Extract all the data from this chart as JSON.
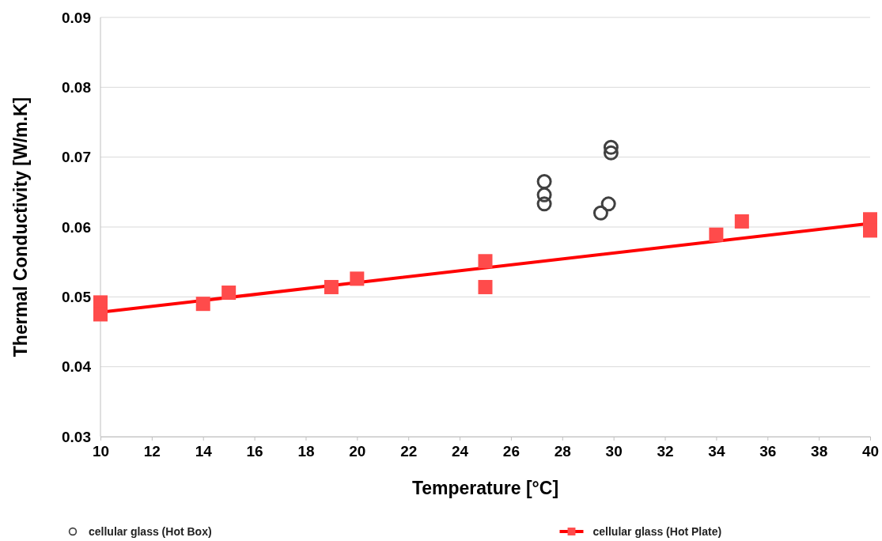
{
  "chart_data": {
    "type": "scatter",
    "xlabel": "Temperature [°C]",
    "ylabel": "Thermal Conductivity [W/m.K]",
    "xlim": [
      10,
      40
    ],
    "xticks": [
      10,
      12,
      14,
      16,
      18,
      20,
      22,
      24,
      26,
      28,
      30,
      32,
      34,
      36,
      38,
      40
    ],
    "ylim": [
      0.03,
      0.09
    ],
    "yticks": [
      0.03,
      0.04,
      0.05,
      0.06,
      0.07,
      0.08,
      0.09
    ],
    "grid": "y",
    "legend": "bottom",
    "series": [
      {
        "name": "cellular glass (Hot Box)",
        "marker": "circle",
        "color": "#404040",
        "x": [
          27.3,
          27.3,
          27.3,
          29.5,
          29.8,
          29.9,
          29.9
        ],
        "values": [
          0.0665,
          0.0646,
          0.0633,
          0.062,
          0.0633,
          0.0714,
          0.0706
        ]
      },
      {
        "name": "cellular glass (Hot Plate)",
        "marker": "square",
        "color": "#ff4b4b",
        "x": [
          10,
          10,
          14,
          15,
          19,
          20,
          25,
          25,
          34,
          35,
          40,
          40
        ],
        "values": [
          0.0492,
          0.0475,
          0.049,
          0.0506,
          0.0514,
          0.0526,
          0.0551,
          0.0514,
          0.0589,
          0.0608,
          0.0611,
          0.0595
        ]
      },
      {
        "type": "line",
        "marker": "none",
        "color": "#ff0000",
        "x": [
          10,
          40
        ],
        "values": [
          0.0478,
          0.0605
        ]
      }
    ]
  }
}
